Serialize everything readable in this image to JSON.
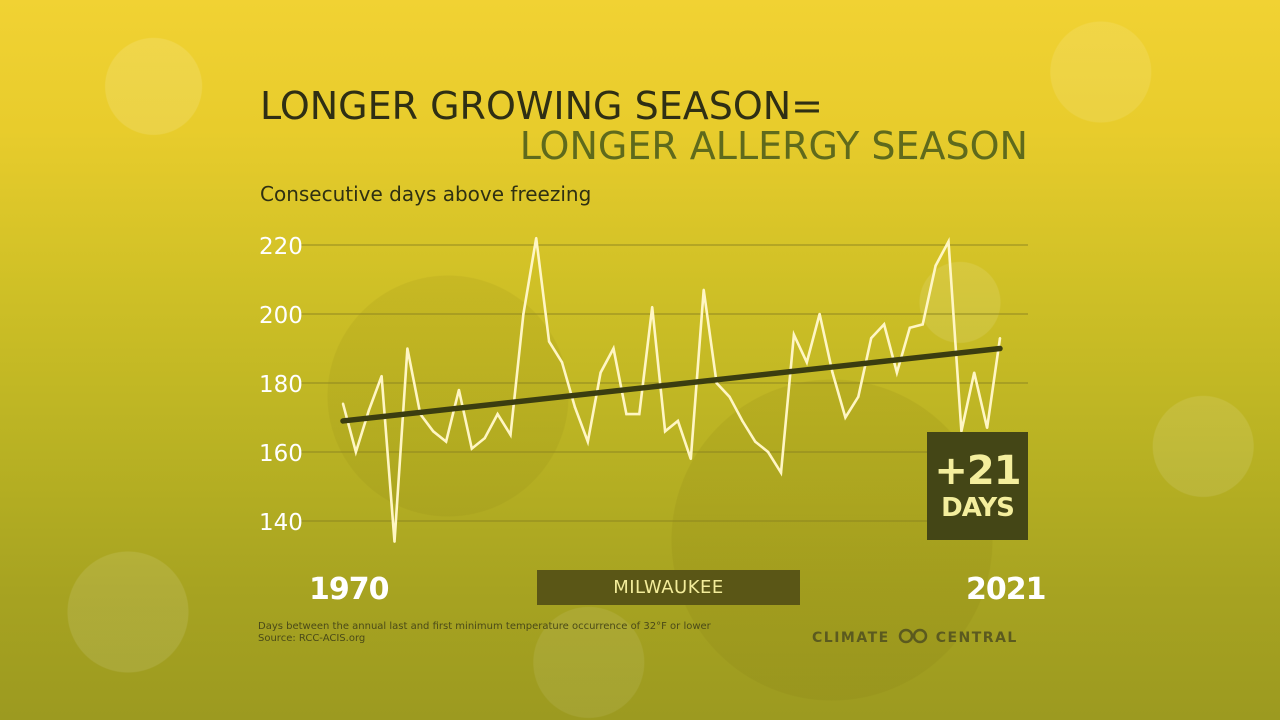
{
  "title_line1": "LONGER GROWING SEASON=",
  "title_line2": "LONGER ALLERGY SEASON",
  "subtitle": "Consecutive days above freezing",
  "location": "MILWAUKEE",
  "callout": {
    "value": "+21",
    "unit": "DAYS"
  },
  "footnote": {
    "line1": "Days between the annual last and first minimum temperature occurrence of 32°F or lower",
    "line2": "Source: RCC-ACIS.org"
  },
  "brand": {
    "left": "CLIMATE",
    "right": "CENTRAL"
  },
  "colors": {
    "data_line": "#fff6c4",
    "trend_line": "#3b3d10",
    "gridline": "#8a8220",
    "tick_text": "#ffffff",
    "callout_bg": "#444616"
  },
  "chart_data": {
    "type": "line",
    "x_start_label": "1970",
    "x_end_label": "2021",
    "xlim": [
      1970,
      2021
    ],
    "ylim": [
      130,
      222
    ],
    "y_ticks": [
      140,
      160,
      180,
      200,
      220
    ],
    "grid": true,
    "series": [
      {
        "x": [
          1970,
          1971,
          1972,
          1973,
          1974,
          1975,
          1976,
          1977,
          1978,
          1979,
          1980,
          1981,
          1982,
          1983,
          1984,
          1985,
          1986,
          1987,
          1988,
          1989,
          1990,
          1991,
          1992,
          1993,
          1994,
          1995,
          1996,
          1997,
          1998,
          1999,
          2000,
          2001,
          2002,
          2003,
          2004,
          2005,
          2006,
          2007,
          2008,
          2009,
          2010,
          2011,
          2012,
          2013,
          2014,
          2015,
          2016,
          2017,
          2018,
          2019,
          2020,
          2021
        ],
        "values": [
          174,
          160,
          172,
          182,
          134,
          190,
          171,
          166,
          163,
          178,
          161,
          164,
          171,
          165,
          200,
          222,
          192,
          186,
          173,
          163,
          183,
          190,
          171,
          171,
          202,
          166,
          169,
          158,
          207,
          180,
          176,
          169,
          163,
          160,
          154,
          194,
          186,
          200,
          183,
          170,
          176,
          193,
          197,
          183,
          196,
          197,
          214,
          221,
          166,
          183,
          167,
          193
        ]
      },
      {
        "x": [
          1970,
          2021
        ],
        "values": [
          169,
          190
        ]
      }
    ]
  }
}
